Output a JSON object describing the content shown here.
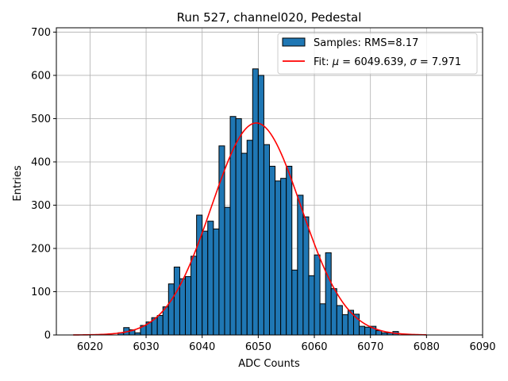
{
  "chart_data": {
    "type": "bar",
    "title": "Run 527, channel020, Pedestal",
    "xlabel": "ADC Counts",
    "ylabel": "Entries",
    "xlim": [
      6014,
      6090
    ],
    "ylim": [
      0,
      710
    ],
    "xticks": [
      6020,
      6030,
      6040,
      6050,
      6060,
      6070,
      6080,
      6090
    ],
    "yticks": [
      0,
      100,
      200,
      300,
      400,
      500,
      600,
      700
    ],
    "grid": true,
    "legend_position": "top-right",
    "histogram": {
      "name": "Samples: RMS=8.17",
      "color": "#1f77b4",
      "bin_width": 1,
      "bin_starts": [
        6017,
        6018,
        6019,
        6020,
        6021,
        6022,
        6023,
        6024,
        6025,
        6026,
        6027,
        6028,
        6029,
        6030,
        6031,
        6032,
        6033,
        6034,
        6035,
        6036,
        6037,
        6038,
        6039,
        6040,
        6041,
        6042,
        6043,
        6044,
        6045,
        6046,
        6047,
        6048,
        6049,
        6050,
        6051,
        6052,
        6053,
        6054,
        6055,
        6056,
        6057,
        6058,
        6059,
        6060,
        6061,
        6062,
        6063,
        6064,
        6065,
        6066,
        6067,
        6068,
        6069,
        6070,
        6071,
        6072,
        6073,
        6074,
        6075,
        6076,
        6077,
        6078,
        6079
      ],
      "values": [
        0,
        0,
        0,
        0,
        0,
        0,
        0,
        0,
        5,
        17,
        12,
        5,
        22,
        30,
        40,
        45,
        65,
        118,
        157,
        130,
        135,
        182,
        277,
        240,
        263,
        245,
        437,
        295,
        505,
        500,
        420,
        450,
        615,
        600,
        440,
        390,
        356,
        362,
        390,
        150,
        323,
        273,
        137,
        185,
        72,
        190,
        107,
        68,
        47,
        57,
        48,
        20,
        18,
        20,
        10,
        5,
        5,
        8,
        0,
        0,
        0,
        0,
        0
      ]
    },
    "fit": {
      "name": "Fit: μ = 6049.639, σ = 7.971",
      "label_prefix": "Fit: ",
      "label_mu": "μ",
      "label_mu_value": " = 6049.639, ",
      "label_sigma": "σ",
      "label_sigma_value": " = 7.971",
      "color": "#ff0000",
      "mu": 6049.639,
      "sigma": 7.971,
      "amplitude": 490,
      "x_range": [
        6017,
        6080
      ]
    }
  }
}
